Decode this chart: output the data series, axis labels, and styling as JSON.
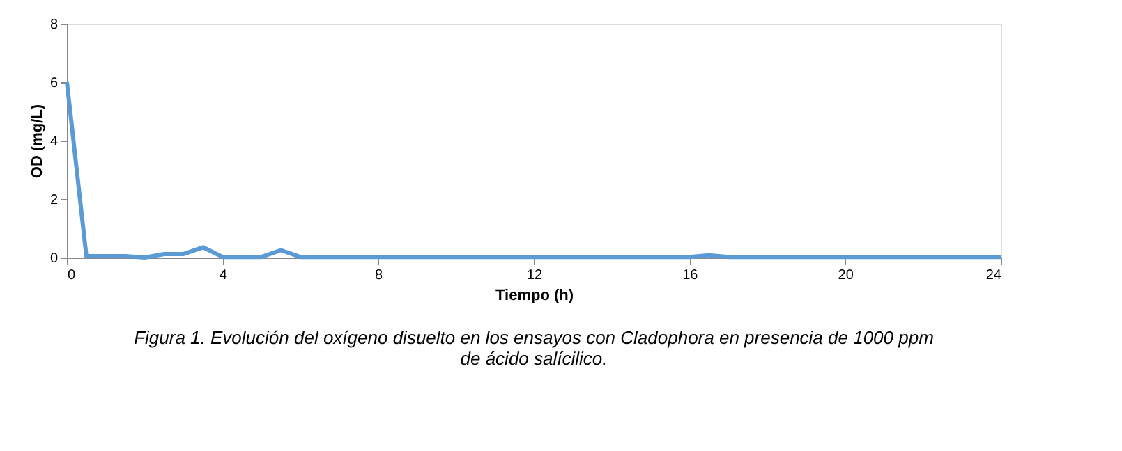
{
  "chart_data": {
    "type": "line",
    "xlabel": "Tiempo (h)",
    "ylabel": "OD (mg/L)",
    "annotations": [
      "Figura 1. Evolución del oxígeno disuelto en los ensayos con Cladophora en presencia de 1000 ppm de ácido salícilico."
    ],
    "x": [
      0,
      0.5,
      1,
      1.5,
      2,
      2.5,
      3,
      3.5,
      4,
      4.5,
      5,
      5.5,
      6,
      7,
      8,
      9,
      10,
      11,
      12,
      13,
      14,
      15,
      16,
      16.5,
      17,
      18,
      19,
      20,
      21,
      22,
      23,
      24
    ],
    "series": [
      {
        "color": "#5b9bd5",
        "values": [
          6,
          0.05,
          0.05,
          0.05,
          0,
          0.12,
          0.12,
          0.35,
          0.02,
          0.02,
          0.02,
          0.25,
          0.02,
          0.02,
          0.02,
          0.02,
          0.02,
          0.02,
          0.02,
          0.02,
          0.02,
          0.02,
          0.02,
          0.08,
          0.02,
          0.02,
          0.02,
          0.02,
          0.02,
          0.02,
          0.02,
          0.02
        ]
      }
    ],
    "xlim": [
      0,
      24
    ],
    "xticks": [
      0,
      4,
      8,
      12,
      16,
      20,
      24
    ],
    "ylim": [
      0,
      8
    ],
    "yticks": [
      0,
      2,
      4,
      6,
      8
    ],
    "grid": false,
    "marker": "none",
    "line_style": "solid"
  }
}
